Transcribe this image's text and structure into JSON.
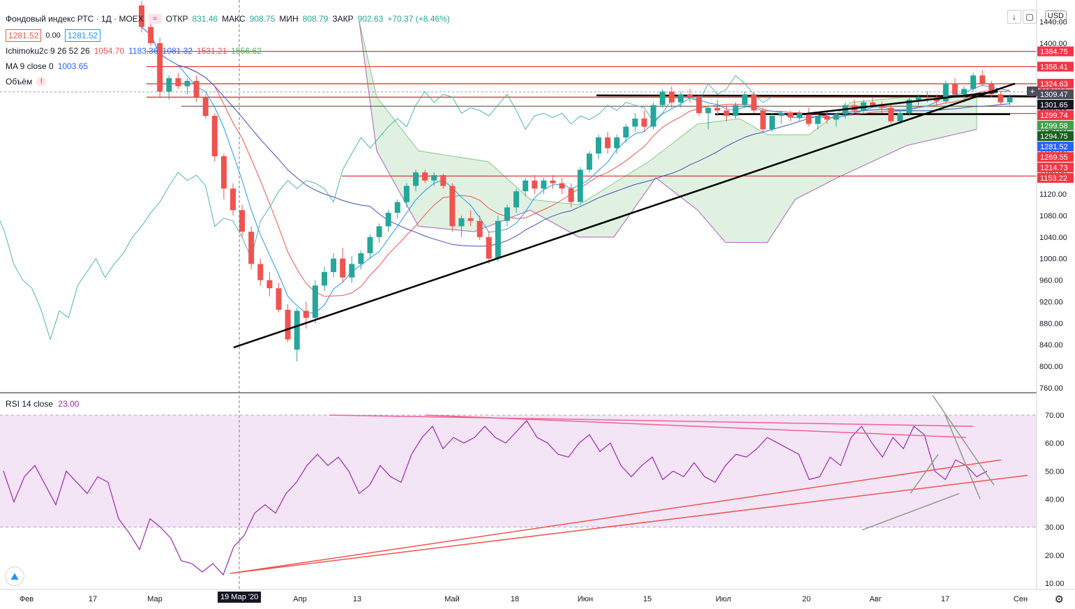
{
  "header": {
    "symbol_title": "Фондовый индекс РТС · 1Д · MOEX",
    "open_label": "ОТКР",
    "open_value": "831.46",
    "high_label": "МАКС",
    "high_value": "908.75",
    "low_label": "МИН",
    "low_value": "808.79",
    "close_label": "ЗАКР",
    "close_value": "902.63",
    "change_value": "+70.37 (+8.46%)",
    "bid": "1281.52",
    "spread": "0.00",
    "ask": "1281.52",
    "currency": "USD"
  },
  "indicators": [
    {
      "name": "Ichimoku2c 9 26 52 26",
      "values": [
        "1054.70",
        "1183.36",
        "1081.32",
        "1531.21",
        "1556.62"
      ],
      "colors": [
        "#ef5350",
        "#2962ff",
        "#4caf50",
        "#2962ff",
        "#4caf50"
      ]
    },
    {
      "name": "MA 9 close 0",
      "values": [
        "1003.65"
      ],
      "colors": [
        "#2962ff"
      ]
    },
    {
      "name": "Объём",
      "values": [],
      "colors": []
    }
  ],
  "rsi": {
    "label": "RSI 14 close",
    "value": "23.00"
  },
  "colors": {
    "up": "#26a69a",
    "down": "#ef5350",
    "cloud": "#c8e6c9",
    "rsi_band": "#f3e5f5",
    "rsi_line": "#9c27b0"
  },
  "chart_data": {
    "type": "candlestick",
    "price_axis": {
      "min": 760,
      "max": 1440,
      "ticks": [
        1440,
        1400,
        1360,
        1320,
        1280,
        1240,
        1200,
        1160,
        1120,
        1080,
        1040,
        1000,
        960,
        920,
        880,
        840,
        800,
        760
      ],
      "tick_labels": [
        "1440.00",
        "1400.00",
        "1360.00",
        "1320.00",
        "1280.00",
        "1240.00",
        "1200.00",
        "1160.00",
        "1120.00",
        "1080.00",
        "1040.00",
        "1000.00",
        "960.00",
        "920.00",
        "880.00",
        "840.00",
        "800.00",
        "760.00"
      ]
    },
    "rsi_axis": {
      "min": 10,
      "max": 70,
      "ticks": [
        "70.00",
        "60.00",
        "50.00",
        "40.00",
        "30.00",
        "20.00",
        "10.00"
      ],
      "band": [
        30,
        70
      ]
    },
    "time_axis": [
      "Фев",
      "17",
      "Мар",
      "19 Мар '20",
      "Апр",
      "13",
      "Май",
      "18",
      "Июн",
      "15",
      "Июл",
      "20",
      "Авг",
      "17",
      "Сен"
    ],
    "crosshair_date": "19 Мар '20",
    "price_labels": [
      {
        "text": "1384.75",
        "value": 1384.75,
        "bg": "#f23645"
      },
      {
        "text": "1356.41",
        "value": 1356.41,
        "bg": "#f23645"
      },
      {
        "text": "1324.63",
        "value": 1324.63,
        "bg": "#f23645"
      },
      {
        "text": "1309.47",
        "value": 1309.47,
        "bg": "#4a4e5a"
      },
      {
        "text": "1301.65",
        "value": 1301.65,
        "bg": "#131722"
      },
      {
        "text": "1299.74",
        "value": 1299.74,
        "bg": "#f23645"
      },
      {
        "text": "1299.58",
        "value": 1299.58,
        "bg": "#43a047"
      },
      {
        "text": "1294.75",
        "value": 1294.75,
        "bg": "#1b5e20"
      },
      {
        "text": "1281.52",
        "value": 1281.52,
        "bg": "#2962ff"
      },
      {
        "text": "1269.55",
        "value": 1269.55,
        "bg": "#f23645"
      },
      {
        "text": "1214.73",
        "value": 1214.73,
        "bg": "#f23645"
      },
      {
        "text": "1153.22",
        "value": 1153.22,
        "bg": "#f23645"
      }
    ],
    "horizontal_levels": [
      1384.75,
      1356.41,
      1324.63,
      1299.74,
      1269.55,
      1153.22
    ],
    "candles": [
      [
        1470,
        1478,
        1420,
        1430
      ],
      [
        1430,
        1440,
        1395,
        1400
      ],
      [
        1400,
        1410,
        1300,
        1310
      ],
      [
        1310,
        1340,
        1295,
        1335
      ],
      [
        1335,
        1345,
        1315,
        1320
      ],
      [
        1320,
        1335,
        1305,
        1330
      ],
      [
        1330,
        1340,
        1290,
        1300
      ],
      [
        1300,
        1305,
        1260,
        1265
      ],
      [
        1265,
        1270,
        1180,
        1190
      ],
      [
        1190,
        1195,
        1110,
        1130
      ],
      [
        1130,
        1140,
        1080,
        1090
      ],
      [
        1090,
        1100,
        1040,
        1050
      ],
      [
        1050,
        1060,
        980,
        990
      ],
      [
        990,
        1000,
        950,
        960
      ],
      [
        960,
        975,
        930,
        945
      ],
      [
        945,
        955,
        900,
        905
      ],
      [
        905,
        915,
        845,
        850
      ],
      [
        831,
        909,
        809,
        903
      ],
      [
        903,
        920,
        870,
        890
      ],
      [
        890,
        960,
        880,
        950
      ],
      [
        950,
        985,
        940,
        975
      ],
      [
        975,
        1010,
        965,
        1000
      ],
      [
        1000,
        1020,
        955,
        965
      ],
      [
        965,
        1005,
        955,
        990
      ],
      [
        990,
        1015,
        980,
        1010
      ],
      [
        1010,
        1045,
        1000,
        1040
      ],
      [
        1040,
        1065,
        1030,
        1060
      ],
      [
        1060,
        1090,
        1050,
        1085
      ],
      [
        1085,
        1110,
        1075,
        1105
      ],
      [
        1105,
        1140,
        1095,
        1135
      ],
      [
        1135,
        1165,
        1125,
        1160
      ],
      [
        1160,
        1165,
        1140,
        1145
      ],
      [
        1145,
        1160,
        1135,
        1155
      ],
      [
        1155,
        1158,
        1130,
        1135
      ],
      [
        1135,
        1140,
        1050,
        1060
      ],
      [
        1060,
        1080,
        1040,
        1075
      ],
      [
        1075,
        1090,
        1060,
        1070
      ],
      [
        1070,
        1080,
        1035,
        1040
      ],
      [
        1040,
        1050,
        990,
        1000
      ],
      [
        1000,
        1080,
        995,
        1070
      ],
      [
        1070,
        1100,
        1060,
        1095
      ],
      [
        1095,
        1130,
        1085,
        1125
      ],
      [
        1125,
        1150,
        1115,
        1145
      ],
      [
        1145,
        1155,
        1120,
        1130
      ],
      [
        1130,
        1150,
        1120,
        1145
      ],
      [
        1145,
        1155,
        1130,
        1140
      ],
      [
        1140,
        1150,
        1120,
        1130
      ],
      [
        1130,
        1140,
        1095,
        1105
      ],
      [
        1105,
        1170,
        1100,
        1165
      ],
      [
        1165,
        1200,
        1160,
        1195
      ],
      [
        1195,
        1230,
        1185,
        1225
      ],
      [
        1225,
        1235,
        1195,
        1205
      ],
      [
        1205,
        1230,
        1195,
        1225
      ],
      [
        1225,
        1250,
        1215,
        1245
      ],
      [
        1245,
        1270,
        1235,
        1260
      ],
      [
        1260,
        1275,
        1235,
        1245
      ],
      [
        1245,
        1290,
        1240,
        1285
      ],
      [
        1285,
        1315,
        1280,
        1310
      ],
      [
        1310,
        1320,
        1280,
        1290
      ],
      [
        1290,
        1310,
        1280,
        1305
      ],
      [
        1305,
        1315,
        1290,
        1300
      ],
      [
        1300,
        1305,
        1265,
        1270
      ],
      [
        1270,
        1285,
        1240,
        1280
      ],
      [
        1280,
        1295,
        1265,
        1275
      ],
      [
        1275,
        1285,
        1255,
        1265
      ],
      [
        1265,
        1290,
        1260,
        1285
      ],
      [
        1285,
        1310,
        1280,
        1305
      ],
      [
        1305,
        1308,
        1270,
        1275
      ],
      [
        1275,
        1280,
        1235,
        1240
      ],
      [
        1240,
        1270,
        1235,
        1265
      ],
      [
        1265,
        1275,
        1250,
        1270
      ],
      [
        1270,
        1275,
        1255,
        1262
      ],
      [
        1262,
        1275,
        1255,
        1270
      ],
      [
        1270,
        1280,
        1245,
        1250
      ],
      [
        1250,
        1270,
        1240,
        1265
      ],
      [
        1265,
        1275,
        1250,
        1258
      ],
      [
        1258,
        1270,
        1245,
        1268
      ],
      [
        1268,
        1290,
        1260,
        1285
      ],
      [
        1285,
        1295,
        1270,
        1275
      ],
      [
        1275,
        1295,
        1270,
        1290
      ],
      [
        1290,
        1300,
        1280,
        1285
      ],
      [
        1285,
        1292,
        1270,
        1280
      ],
      [
        1280,
        1285,
        1250,
        1255
      ],
      [
        1255,
        1275,
        1250,
        1270
      ],
      [
        1270,
        1300,
        1265,
        1295
      ],
      [
        1295,
        1305,
        1285,
        1300
      ],
      [
        1300,
        1310,
        1290,
        1298
      ],
      [
        1298,
        1305,
        1285,
        1292
      ],
      [
        1292,
        1330,
        1288,
        1325
      ],
      [
        1325,
        1335,
        1300,
        1305
      ],
      [
        1305,
        1320,
        1290,
        1315
      ],
      [
        1315,
        1345,
        1310,
        1340
      ],
      [
        1340,
        1350,
        1320,
        1325
      ],
      [
        1325,
        1330,
        1300,
        1305
      ],
      [
        1305,
        1310,
        1285,
        1290
      ],
      [
        1290,
        1305,
        1285,
        1300
      ]
    ],
    "rsi_values": [
      50,
      39,
      48,
      52,
      45,
      38,
      50,
      46,
      42,
      48,
      46,
      33,
      28,
      22,
      33,
      30,
      26,
      18,
      17,
      14,
      17,
      13,
      23,
      27,
      35,
      38,
      35,
      42,
      46,
      52,
      56,
      52,
      55,
      50,
      42,
      45,
      52,
      48,
      46,
      56,
      62,
      66,
      58,
      62,
      60,
      62,
      66,
      62,
      60,
      64,
      68,
      62,
      60,
      56,
      55,
      60,
      63,
      57,
      60,
      52,
      48,
      52,
      55,
      47,
      50,
      48,
      53,
      48,
      46,
      52,
      56,
      55,
      58,
      62,
      60,
      58,
      56,
      47,
      48,
      55,
      52,
      62,
      66,
      60,
      55,
      62,
      58,
      66,
      63,
      50,
      47,
      54,
      52,
      48,
      50
    ],
    "rsi_legend_value": 23.0
  }
}
